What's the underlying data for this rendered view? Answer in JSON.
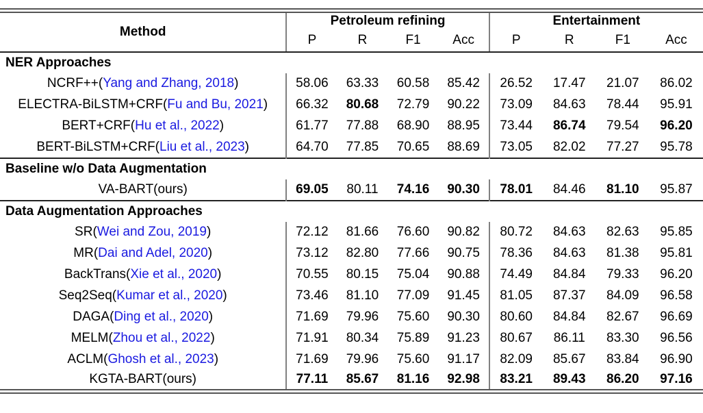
{
  "colors": {
    "citation": "#1a1ae0",
    "rule_dark": "#222222",
    "rule_double": "#555555",
    "vertical_separator": "#808080"
  },
  "table": {
    "method_header": "Method",
    "groups": [
      {
        "label": "Petroleum refining",
        "columns": [
          "P",
          "R",
          "F1",
          "Acc"
        ]
      },
      {
        "label": "Entertainment",
        "columns": [
          "P",
          "R",
          "F1",
          "Acc"
        ]
      }
    ],
    "sections": [
      {
        "title": "NER Approaches",
        "rows": [
          {
            "method": {
              "name": "NCRF++",
              "cite": "Yang and Zhang, 2018",
              "link": true
            },
            "values": [
              "58.06",
              "63.33",
              "60.58",
              "85.42",
              "26.52",
              "17.47",
              "21.07",
              "86.02"
            ],
            "bold": [
              false,
              false,
              false,
              false,
              false,
              false,
              false,
              false
            ]
          },
          {
            "method": {
              "name": "ELECTRA-BiLSTM+CRF",
              "cite": "Fu and Bu, 2021",
              "link": true
            },
            "values": [
              "66.32",
              "80.68",
              "72.79",
              "90.22",
              "73.09",
              "84.63",
              "78.44",
              "95.91"
            ],
            "bold": [
              false,
              true,
              false,
              false,
              false,
              false,
              false,
              false
            ]
          },
          {
            "method": {
              "name": "BERT+CRF",
              "cite": "Hu et al., 2022",
              "link": true
            },
            "values": [
              "61.77",
              "77.88",
              "68.90",
              "88.95",
              "73.44",
              "86.74",
              "79.54",
              "96.20"
            ],
            "bold": [
              false,
              false,
              false,
              false,
              false,
              true,
              false,
              true
            ]
          },
          {
            "method": {
              "name": "BERT-BiLSTM+CRF",
              "cite": "Liu et al., 2023",
              "link": true
            },
            "values": [
              "64.70",
              "77.85",
              "70.65",
              "88.69",
              "73.05",
              "82.02",
              "77.27",
              "95.78"
            ],
            "bold": [
              false,
              false,
              false,
              false,
              false,
              false,
              false,
              false
            ]
          }
        ]
      },
      {
        "title": "Baseline w/o Data Augmentation",
        "rows": [
          {
            "method": {
              "name": "VA-BART",
              "cite": "ours",
              "link": false
            },
            "values": [
              "69.05",
              "80.11",
              "74.16",
              "90.30",
              "78.01",
              "84.46",
              "81.10",
              "95.87"
            ],
            "bold": [
              true,
              false,
              true,
              true,
              true,
              false,
              true,
              false
            ]
          }
        ]
      },
      {
        "title": "Data Augmentation Approaches",
        "rows": [
          {
            "method": {
              "name": "SR",
              "cite": "Wei and Zou, 2019",
              "link": true
            },
            "values": [
              "72.12",
              "81.66",
              "76.60",
              "90.82",
              "80.72",
              "84.63",
              "82.63",
              "95.85"
            ],
            "bold": [
              false,
              false,
              false,
              false,
              false,
              false,
              false,
              false
            ]
          },
          {
            "method": {
              "name": "MR",
              "cite": "Dai and Adel, 2020",
              "link": true
            },
            "values": [
              "73.12",
              "82.80",
              "77.66",
              "90.75",
              "78.36",
              "84.63",
              "81.38",
              "95.81"
            ],
            "bold": [
              false,
              false,
              false,
              false,
              false,
              false,
              false,
              false
            ]
          },
          {
            "method": {
              "name": "BackTrans",
              "cite": "Xie et al., 2020",
              "link": true
            },
            "values": [
              "70.55",
              "80.15",
              "75.04",
              "90.88",
              "74.49",
              "84.84",
              "79.33",
              "96.20"
            ],
            "bold": [
              false,
              false,
              false,
              false,
              false,
              false,
              false,
              false
            ]
          },
          {
            "method": {
              "name": "Seq2Seq",
              "cite": "Kumar et al., 2020",
              "link": true
            },
            "values": [
              "73.46",
              "81.10",
              "77.09",
              "91.45",
              "81.05",
              "87.37",
              "84.09",
              "96.58"
            ],
            "bold": [
              false,
              false,
              false,
              false,
              false,
              false,
              false,
              false
            ]
          },
          {
            "method": {
              "name": "DAGA",
              "cite": "Ding et al., 2020",
              "link": true
            },
            "values": [
              "71.69",
              "79.96",
              "75.60",
              "90.30",
              "80.60",
              "84.84",
              "82.67",
              "96.69"
            ],
            "bold": [
              false,
              false,
              false,
              false,
              false,
              false,
              false,
              false
            ]
          },
          {
            "method": {
              "name": "MELM",
              "cite": "Zhou et al., 2022",
              "link": true
            },
            "values": [
              "71.91",
              "80.34",
              "75.89",
              "91.23",
              "80.67",
              "86.11",
              "83.30",
              "96.56"
            ],
            "bold": [
              false,
              false,
              false,
              false,
              false,
              false,
              false,
              false
            ]
          },
          {
            "method": {
              "name": "ACLM",
              "cite": "Ghosh et al., 2023",
              "link": true
            },
            "values": [
              "71.69",
              "79.96",
              "75.60",
              "91.17",
              "82.09",
              "85.67",
              "83.84",
              "96.90"
            ],
            "bold": [
              false,
              false,
              false,
              false,
              false,
              false,
              false,
              false
            ]
          },
          {
            "method": {
              "name": "KGTA-BART",
              "cite": "ours",
              "link": false
            },
            "values": [
              "77.11",
              "85.67",
              "81.16",
              "92.98",
              "83.21",
              "89.43",
              "86.20",
              "97.16"
            ],
            "bold": [
              true,
              true,
              true,
              true,
              true,
              true,
              true,
              true
            ]
          }
        ]
      }
    ]
  }
}
